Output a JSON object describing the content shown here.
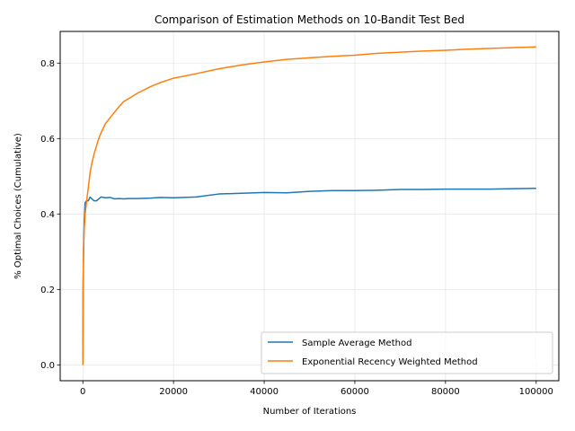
{
  "chart_data": {
    "type": "line",
    "title": "Comparison of Estimation Methods on 10-Bandit Test Bed",
    "xlabel": "Number of Iterations",
    "ylabel": "% Optimal Choices (Cumulative)",
    "xlim": [
      -5000,
      105000
    ],
    "ylim": [
      -0.042,
      0.884
    ],
    "xticks": [
      0,
      20000,
      40000,
      60000,
      80000,
      100000
    ],
    "yticks": [
      0.0,
      0.2,
      0.4,
      0.6,
      0.8
    ],
    "xtick_labels": [
      "0",
      "20000",
      "40000",
      "60000",
      "80000",
      "100000"
    ],
    "ytick_labels": [
      "0.0",
      "0.2",
      "0.4",
      "0.6",
      "0.8"
    ],
    "grid": true,
    "legend_position": "bottom-right",
    "series": [
      {
        "name": "Sample Average Method",
        "color": "#1f77b4",
        "x": [
          0,
          50,
          150,
          300,
          500,
          800,
          1200,
          1600,
          2000,
          2500,
          3000,
          3500,
          4000,
          5000,
          6000,
          7000,
          8000,
          9000,
          10000,
          12000,
          15000,
          17000,
          20000,
          25000,
          30000,
          35000,
          40000,
          45000,
          50000,
          55000,
          60000,
          65000,
          70000,
          75000,
          80000,
          85000,
          90000,
          95000,
          100000
        ],
        "y": [
          0.0,
          0.2,
          0.3,
          0.38,
          0.43,
          0.435,
          0.435,
          0.445,
          0.44,
          0.435,
          0.435,
          0.44,
          0.445,
          0.443,
          0.444,
          0.44,
          0.441,
          0.44,
          0.441,
          0.441,
          0.442,
          0.444,
          0.443,
          0.445,
          0.453,
          0.455,
          0.457,
          0.456,
          0.46,
          0.462,
          0.462,
          0.463,
          0.465,
          0.465,
          0.466,
          0.466,
          0.466,
          0.467,
          0.468
        ]
      },
      {
        "name": "Exponential Recency Weighted Method",
        "color": "#ff7f0e",
        "x": [
          0,
          50,
          150,
          300,
          500,
          800,
          1200,
          1600,
          2000,
          2500,
          3000,
          3500,
          4000,
          5000,
          6000,
          7000,
          8000,
          9000,
          10000,
          12000,
          15000,
          17000,
          20000,
          25000,
          30000,
          35000,
          40000,
          45000,
          50000,
          55000,
          60000,
          65000,
          70000,
          75000,
          80000,
          85000,
          90000,
          95000,
          100000
        ],
        "y": [
          0.0,
          0.2,
          0.3,
          0.36,
          0.4,
          0.43,
          0.47,
          0.51,
          0.535,
          0.56,
          0.58,
          0.6,
          0.615,
          0.64,
          0.655,
          0.67,
          0.685,
          0.698,
          0.705,
          0.72,
          0.738,
          0.748,
          0.76,
          0.772,
          0.785,
          0.795,
          0.803,
          0.81,
          0.814,
          0.818,
          0.821,
          0.826,
          0.829,
          0.832,
          0.834,
          0.837,
          0.839,
          0.841,
          0.843
        ]
      }
    ]
  }
}
